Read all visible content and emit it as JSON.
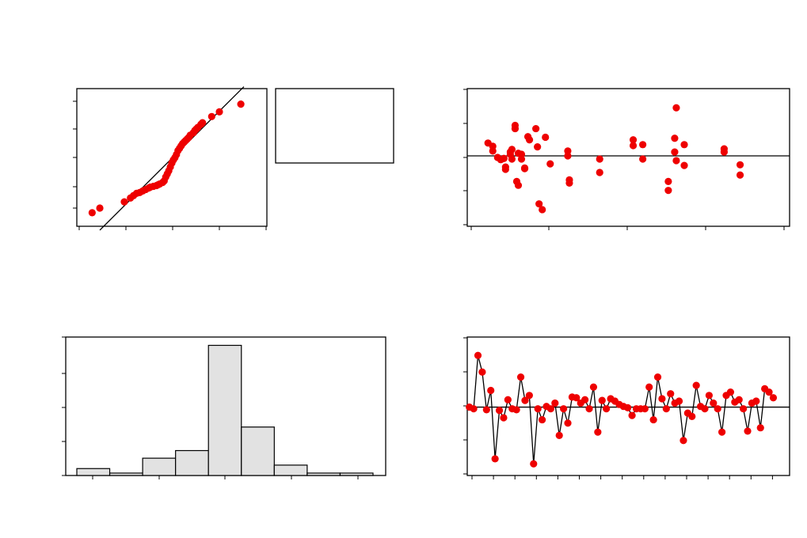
{
  "chart_data": [
    {
      "type": "scatter",
      "id": "normal-probability",
      "title": "",
      "xlabel": "",
      "ylabel": "",
      "xlim": [
        -3.1,
        3.1
      ],
      "ylim": [
        -1.65,
        1.9
      ],
      "x": [
        -2.6,
        -2.35,
        -1.55,
        -1.35,
        -1.25,
        -1.15,
        -1.05,
        -0.95,
        -0.85,
        -0.75,
        -0.7,
        -0.6,
        -0.5,
        -0.45,
        -0.4,
        -0.3,
        -0.25,
        -0.2,
        -0.15,
        -0.1,
        -0.05,
        0.0,
        0.05,
        0.1,
        0.15,
        0.2,
        0.25,
        0.3,
        0.35,
        0.4,
        0.45,
        0.5,
        0.55,
        0.6,
        0.7,
        0.75,
        0.8,
        0.85,
        0.95,
        1.0,
        1.3,
        1.55,
        2.25
      ],
      "y": [
        -1.3,
        -1.18,
        -1.02,
        -0.92,
        -0.86,
        -0.8,
        -0.78,
        -0.74,
        -0.7,
        -0.66,
        -0.64,
        -0.62,
        -0.6,
        -0.58,
        -0.56,
        -0.52,
        -0.48,
        -0.38,
        -0.3,
        -0.22,
        -0.12,
        -0.02,
        0.06,
        0.12,
        0.2,
        0.3,
        0.36,
        0.42,
        0.48,
        0.52,
        0.56,
        0.6,
        0.64,
        0.7,
        0.76,
        0.82,
        0.86,
        0.9,
        0.98,
        1.02,
        1.18,
        1.3,
        1.5
      ],
      "reference_line": [
        [
          -2.35,
          -1.75
        ],
        [
          2.35,
          1.95
        ]
      ],
      "legend_box": true
    },
    {
      "type": "scatter",
      "id": "residuals-vs-fits",
      "title": "",
      "xlabel": "",
      "ylabel": "",
      "xlim": [
        0.4,
        10.5
      ],
      "ylim": [
        -2.2,
        2.1
      ],
      "x": [
        1.05,
        1.2,
        1.2,
        1.35,
        1.45,
        1.55,
        1.6,
        1.6,
        1.75,
        1.75,
        1.8,
        1.8,
        1.9,
        1.9,
        1.95,
        2.0,
        2.0,
        2.1,
        2.1,
        2.2,
        2.2,
        2.3,
        2.35,
        2.55,
        2.6,
        2.65,
        2.75,
        2.85,
        3.0,
        3.55,
        3.55,
        3.6,
        3.6,
        4.55,
        4.55,
        5.6,
        5.6,
        5.9,
        5.9,
        6.7,
        6.7,
        6.9,
        6.9,
        6.95,
        6.95,
        7.2,
        7.2,
        8.45,
        8.45,
        8.95,
        8.95
      ],
      "y": [
        0.4,
        0.3,
        0.15,
        -0.05,
        -0.12,
        -0.08,
        -0.35,
        -0.42,
        0.05,
        0.12,
        -0.1,
        0.2,
        0.95,
        0.85,
        -0.8,
        -0.92,
        0.08,
        0.05,
        -0.1,
        -0.38,
        -0.4,
        0.6,
        0.5,
        0.85,
        0.28,
        -1.5,
        -1.68,
        0.58,
        -0.25,
        0.15,
        0.0,
        -0.75,
        -0.85,
        -0.1,
        -0.52,
        0.5,
        0.32,
        -0.1,
        0.35,
        -0.8,
        -1.08,
        0.55,
        0.12,
        1.5,
        -0.15,
        0.35,
        -0.3,
        0.22,
        0.12,
        -0.28,
        -0.6
      ],
      "reference_y": 0
    },
    {
      "type": "bar",
      "id": "histogram",
      "title": "",
      "xlabel": "",
      "ylabel": "",
      "ylim": [
        0,
        20
      ],
      "values": [
        1.0,
        0.35,
        2.5,
        3.6,
        18.8,
        7.0,
        1.5,
        0.35,
        0.35
      ],
      "bar_fill": "#e2e2e2"
    },
    {
      "type": "line",
      "id": "residuals-vs-order",
      "title": "",
      "xlabel": "",
      "ylabel": "",
      "xlim": [
        -0.5,
        74.8
      ],
      "ylim": [
        -2.05,
        2.1
      ],
      "values": [
        0.0,
        -0.05,
        1.55,
        1.05,
        -0.08,
        0.5,
        -1.55,
        -0.1,
        -0.32,
        0.22,
        -0.05,
        -0.08,
        0.9,
        0.2,
        0.35,
        -1.7,
        -0.05,
        -0.38,
        0.02,
        -0.05,
        0.12,
        -0.85,
        -0.05,
        -0.48,
        0.3,
        0.28,
        0.12,
        0.22,
        -0.05,
        0.6,
        -0.75,
        0.2,
        -0.05,
        0.25,
        0.18,
        0.08,
        0.02,
        -0.02,
        -0.25,
        -0.05,
        -0.05,
        -0.05,
        0.6,
        -0.38,
        0.9,
        0.25,
        -0.05,
        0.4,
        0.12,
        0.18,
        -1.0,
        -0.18,
        -0.28,
        0.65,
        0.02,
        -0.05,
        0.35,
        0.12,
        -0.05,
        -0.75,
        0.35,
        0.45,
        0.15,
        0.22,
        -0.05,
        -0.72,
        0.12,
        0.18,
        -0.62,
        0.55,
        0.45,
        0.28
      ],
      "reference_y": 0
    }
  ]
}
